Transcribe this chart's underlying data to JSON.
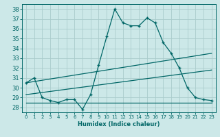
{
  "xlabel": "Humidex (Indice chaleur)",
  "background_color": "#cce8e8",
  "grid_color": "#aacccc",
  "line_color": "#006666",
  "xlim": [
    -0.5,
    23.5
  ],
  "ylim": [
    27.5,
    38.5
  ],
  "yticks": [
    28,
    29,
    30,
    31,
    32,
    33,
    34,
    35,
    36,
    37,
    38
  ],
  "xticks": [
    0,
    1,
    2,
    3,
    4,
    5,
    6,
    7,
    8,
    9,
    10,
    11,
    12,
    13,
    14,
    15,
    16,
    17,
    18,
    19,
    20,
    21,
    22,
    23
  ],
  "series1_x": [
    0,
    1,
    2,
    3,
    4,
    5,
    6,
    7,
    8,
    9,
    10,
    11,
    12,
    13,
    14,
    15,
    16,
    17,
    18,
    19,
    20,
    21,
    22,
    23
  ],
  "series1_y": [
    30.5,
    31.0,
    29.0,
    28.7,
    28.5,
    28.8,
    28.8,
    27.8,
    29.3,
    32.3,
    35.2,
    38.0,
    36.6,
    36.3,
    36.3,
    37.1,
    36.6,
    34.6,
    33.5,
    32.0,
    30.0,
    29.0,
    28.8,
    28.7
  ],
  "series2_x": [
    0,
    23
  ],
  "series2_y": [
    30.5,
    33.5
  ],
  "series3_x": [
    0,
    23
  ],
  "series3_y": [
    29.3,
    31.8
  ],
  "series4_x": [
    0,
    23
  ],
  "series4_y": [
    28.5,
    28.5
  ]
}
